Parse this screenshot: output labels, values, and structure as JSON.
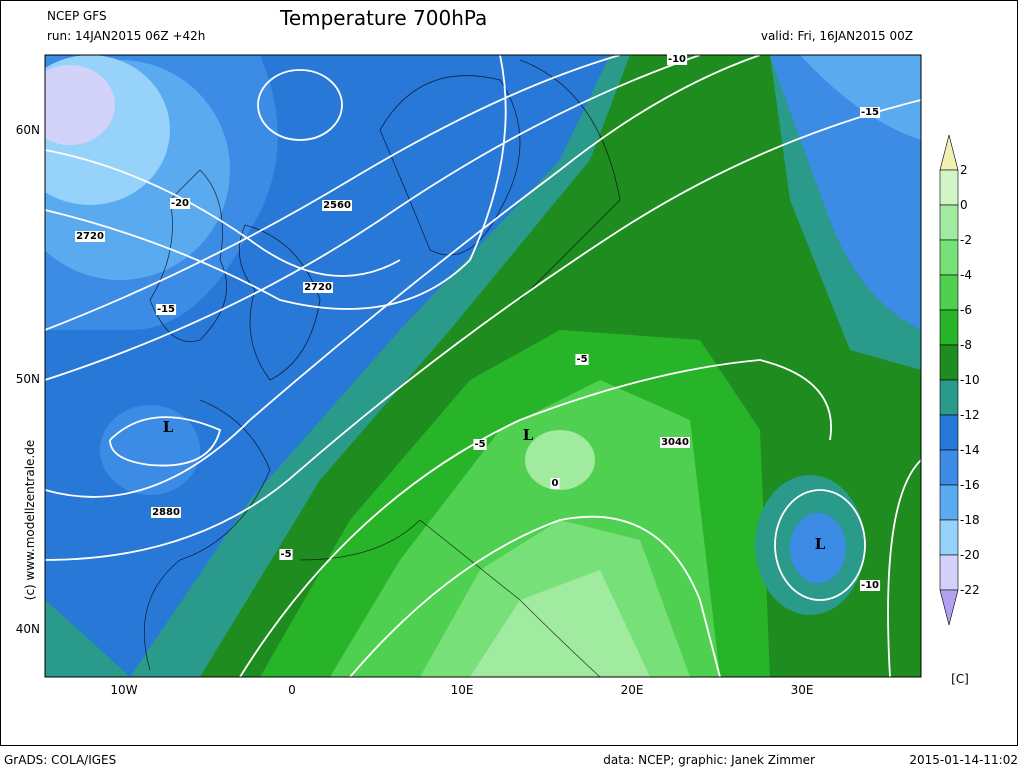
{
  "header": {
    "model": "NCEP GFS",
    "run": "run: 14JAN2015 06Z +42h",
    "title": "Temperature 700hPa",
    "valid": "valid: Fri, 16JAN2015 00Z"
  },
  "axes": {
    "lat": [
      "60N",
      "50N",
      "40N"
    ],
    "lon": [
      "10W",
      "0",
      "10E",
      "20E",
      "30E"
    ]
  },
  "map": {
    "labels": [
      "2560",
      "2720",
      "2720",
      "2880",
      "3040",
      "-15",
      "-15",
      "-10",
      "-10",
      "-5",
      "-5",
      "-5",
      "-20",
      "0"
    ],
    "lows": [
      "L",
      "L",
      "L"
    ]
  },
  "colorbar": {
    "labels": [
      "2",
      "0",
      "-2",
      "-4",
      "-6",
      "-8",
      "-10",
      "-12",
      "-14",
      "-16",
      "-18",
      "-20",
      "-22"
    ],
    "colors": [
      "#f0f0b4",
      "#d2f5c8",
      "#a0eba0",
      "#78e078",
      "#50d050",
      "#28b428",
      "#1e8c1e",
      "#2a9a8a",
      "#2878d8",
      "#3c8ce6",
      "#5aaaf0",
      "#96d2fa",
      "#d2d2fa",
      "#b4a0f0"
    ],
    "unit": "[C]"
  },
  "watermark": "(c) www.modellzentrale.de",
  "footer": {
    "software": "GrADS: COLA/IGES",
    "credit": "data: NCEP; graphic: Janek Zimmer",
    "timestamp": "2015-01-14-11:02"
  }
}
